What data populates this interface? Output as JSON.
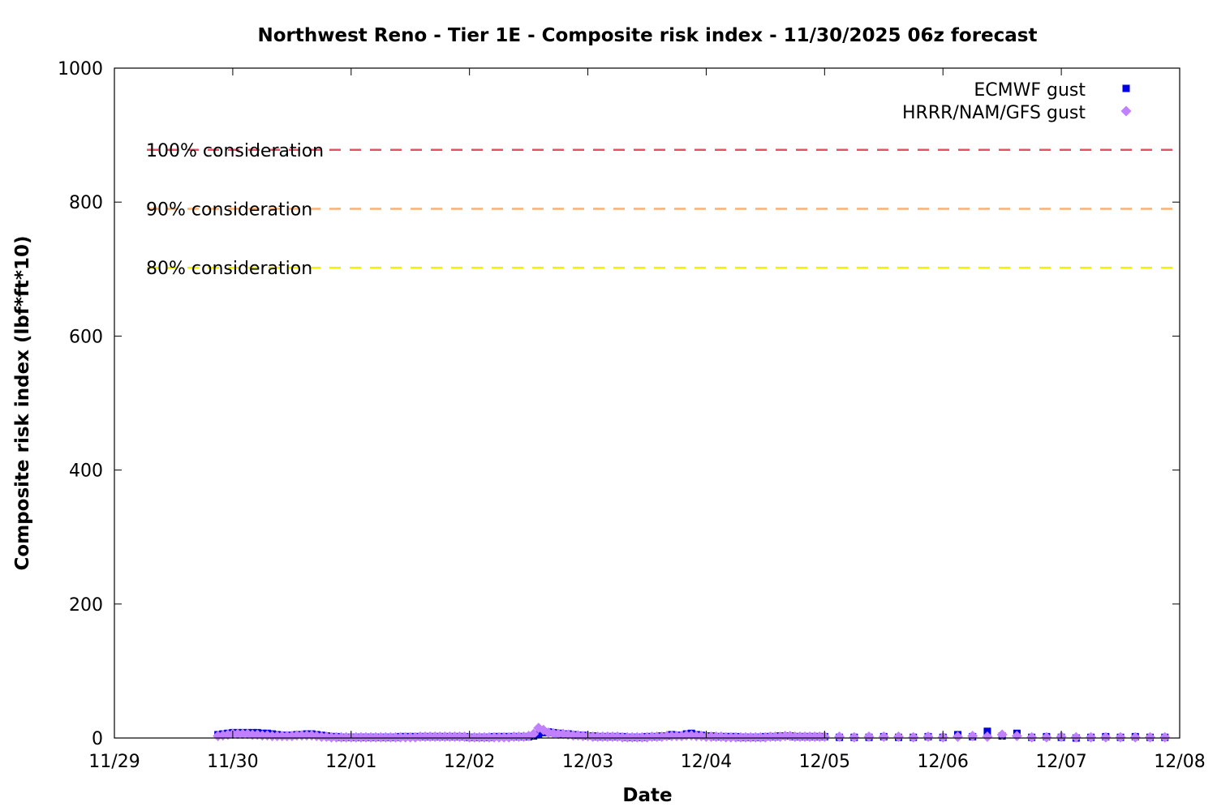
{
  "chart_data": {
    "type": "scatter",
    "title": "Northwest Reno - Tier 1E - Composite risk index - 11/30/2025 06z forecast",
    "xlabel": "Date",
    "ylabel": "Composite risk index (lbf*ft*10)",
    "ylim": [
      0,
      1000
    ],
    "yticks": [
      0,
      200,
      400,
      600,
      800,
      1000
    ],
    "xlim": [
      "11/29",
      "12/08"
    ],
    "xticks": [
      "11/29",
      "11/30",
      "12/01",
      "12/02",
      "12/03",
      "12/04",
      "12/05",
      "12/06",
      "12/07",
      "12/08"
    ],
    "grid": false,
    "legend": "top-right",
    "thresholds": [
      {
        "label": "100% consideration",
        "value": 878,
        "color": "#e8506a"
      },
      {
        "label": "90% consideration",
        "value": 790,
        "color": "#ffb070"
      },
      {
        "label": "80% consideration",
        "value": 702,
        "color": "#f0f000"
      }
    ],
    "x": [
      "11/29 21z",
      "11/29 22z",
      "11/29 23z",
      "11/30 00z",
      "11/30 01z",
      "11/30 02z",
      "11/30 03z",
      "11/30 04z",
      "11/30 05z",
      "11/30 06z",
      "11/30 07z",
      "11/30 08z",
      "11/30 09z",
      "11/30 10z",
      "11/30 11z",
      "11/30 12z",
      "11/30 13z",
      "11/30 14z",
      "11/30 15z",
      "11/30 16z",
      "11/30 17z",
      "11/30 18z",
      "11/30 19z",
      "11/30 20z",
      "11/30 21z",
      "11/30 22z",
      "11/30 23z",
      "12/01 00z",
      "12/01 01z",
      "12/01 02z",
      "12/01 03z",
      "12/01 04z",
      "12/01 05z",
      "12/01 06z",
      "12/01 07z",
      "12/01 08z",
      "12/01 09z",
      "12/01 10z",
      "12/01 11z",
      "12/01 12z",
      "12/01 13z",
      "12/01 14z",
      "12/01 15z",
      "12/01 16z",
      "12/01 17z",
      "12/01 18z",
      "12/01 19z",
      "12/01 20z",
      "12/01 21z",
      "12/01 22z",
      "12/01 23z",
      "12/02 00z",
      "12/02 01z",
      "12/02 02z",
      "12/02 03z",
      "12/02 04z",
      "12/02 05z",
      "12/02 06z",
      "12/02 07z",
      "12/02 08z",
      "12/02 09z",
      "12/02 10z",
      "12/02 11z",
      "12/02 12z",
      "12/02 13z",
      "12/02 14z",
      "12/02 15z",
      "12/02 16z",
      "12/02 17z",
      "12/02 18z",
      "12/02 19z",
      "12/02 20z",
      "12/02 21z",
      "12/02 22z",
      "12/02 23z",
      "12/03 00z",
      "12/03 01z",
      "12/03 02z",
      "12/03 03z",
      "12/03 04z",
      "12/03 05z",
      "12/03 06z",
      "12/03 07z",
      "12/03 08z",
      "12/03 09z",
      "12/03 10z",
      "12/03 11z",
      "12/03 12z",
      "12/03 13z",
      "12/03 14z",
      "12/03 15z",
      "12/03 16z",
      "12/03 17z",
      "12/03 18z",
      "12/03 19z",
      "12/03 20z",
      "12/03 21z",
      "12/03 22z",
      "12/03 23z",
      "12/04 00z",
      "12/04 01z",
      "12/04 02z",
      "12/04 03z",
      "12/04 04z",
      "12/04 05z",
      "12/04 06z",
      "12/04 07z",
      "12/04 08z",
      "12/04 09z",
      "12/04 10z",
      "12/04 11z",
      "12/04 12z",
      "12/04 13z",
      "12/04 14z",
      "12/04 15z",
      "12/04 16z",
      "12/04 17z",
      "12/04 18z",
      "12/04 19z",
      "12/04 20z",
      "12/04 21z",
      "12/04 22z",
      "12/04 23z",
      "12/05 00z",
      "12/05 03z",
      "12/05 06z",
      "12/05 09z",
      "12/05 12z",
      "12/05 15z",
      "12/05 18z",
      "12/05 21z",
      "12/06 00z",
      "12/06 03z",
      "12/06 06z",
      "12/06 09z",
      "12/06 12z",
      "12/06 15z",
      "12/06 18z",
      "12/06 21z",
      "12/07 00z",
      "12/07 03z",
      "12/07 06z",
      "12/07 09z",
      "12/07 12z",
      "12/07 15z",
      "12/07 18z",
      "12/07 21z"
    ],
    "series": [
      {
        "name": "ECMWF gust",
        "color": "#0000e0",
        "marker": "square",
        "values": [
          5,
          6,
          7,
          8,
          8,
          8,
          8,
          8,
          8,
          7,
          7,
          6,
          5,
          4,
          4,
          4,
          5,
          5,
          6,
          6,
          5,
          4,
          3,
          2,
          2,
          1,
          1,
          1,
          1,
          1,
          1,
          1,
          1,
          1,
          1,
          1,
          1,
          2,
          2,
          2,
          2,
          2,
          2,
          2,
          2,
          2,
          2,
          2,
          2,
          2,
          2,
          1,
          1,
          1,
          1,
          1,
          2,
          2,
          2,
          2,
          2,
          2,
          2,
          2,
          3,
          5,
          8,
          9,
          8,
          7,
          6,
          6,
          5,
          4,
          4,
          3,
          3,
          2,
          2,
          2,
          2,
          2,
          2,
          1,
          1,
          1,
          1,
          2,
          2,
          2,
          3,
          3,
          5,
          4,
          4,
          6,
          7,
          5,
          4,
          3,
          3,
          2,
          2,
          2,
          2,
          2,
          1,
          1,
          1,
          1,
          1,
          2,
          2,
          2,
          3,
          3,
          3,
          2,
          2,
          2,
          2,
          2,
          2,
          2,
          1,
          1,
          1,
          2,
          1,
          1,
          2,
          1,
          5,
          2,
          10,
          3,
          7,
          1,
          2,
          1,
          0,
          1,
          2,
          1,
          2,
          1,
          1
        ]
      },
      {
        "name": "HRRR/NAM/GFS gust",
        "color": "#c080ff",
        "marker": "diamond",
        "values": [
          3,
          4,
          5,
          6,
          6,
          6,
          6,
          5,
          5,
          4,
          4,
          3,
          3,
          3,
          3,
          3,
          4,
          4,
          4,
          4,
          3,
          2,
          2,
          1,
          1,
          1,
          1,
          1,
          1,
          1,
          1,
          1,
          1,
          1,
          1,
          1,
          1,
          1,
          1,
          1,
          1,
          2,
          2,
          2,
          2,
          2,
          2,
          2,
          2,
          2,
          2,
          1,
          1,
          1,
          1,
          1,
          1,
          1,
          1,
          1,
          2,
          2,
          2,
          3,
          6,
          15,
          12,
          8,
          7,
          6,
          6,
          5,
          4,
          4,
          3,
          3,
          2,
          2,
          2,
          2,
          2,
          2,
          1,
          1,
          1,
          1,
          1,
          1,
          2,
          2,
          2,
          3,
          3,
          3,
          3,
          4,
          4,
          3,
          3,
          2,
          2,
          2,
          2,
          1,
          1,
          1,
          1,
          1,
          1,
          1,
          1,
          1,
          2,
          2,
          2,
          3,
          3,
          2,
          2,
          2,
          2,
          2,
          2,
          2,
          2,
          1,
          2,
          2,
          2,
          1,
          2,
          1,
          2,
          3,
          2,
          5,
          3,
          1,
          1,
          2,
          1,
          1,
          1,
          1,
          1,
          1,
          1
        ]
      }
    ]
  }
}
